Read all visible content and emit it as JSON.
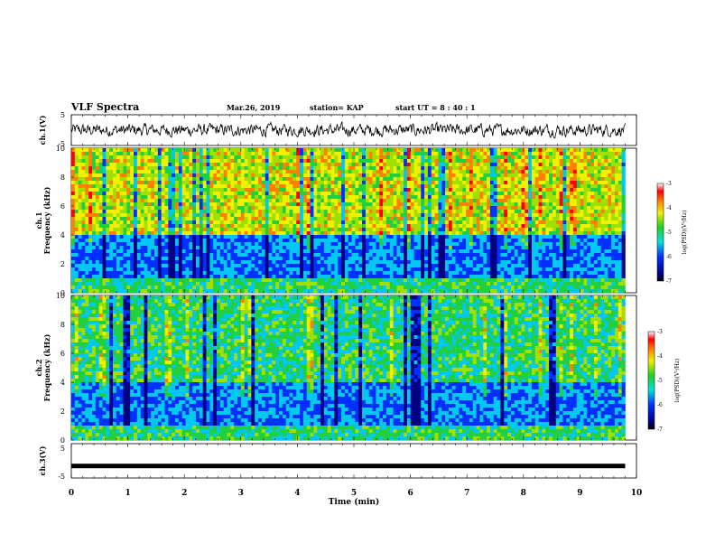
{
  "header": {
    "title": "VLF Spectra",
    "date": "Mar.26, 2019",
    "station": "station= KAP",
    "start_ut": "start  UT =   8 : 40 : 1"
  },
  "chart_data": [
    {
      "id": "ch1-waveform",
      "type": "line",
      "ylabel": "ch.1(V)",
      "ylim": [
        -5,
        5
      ],
      "yticks": [
        "5",
        "-5"
      ],
      "xlim": [
        0,
        10
      ],
      "series": [
        {
          "description_values_approx": [
            -0.3,
            1.5,
            -2.0,
            0.8,
            1.2,
            -1.5,
            0.4,
            -0.8,
            1.6,
            -2.2,
            0.6,
            1.8,
            -1.0,
            0.3,
            -1.9,
            1.1,
            0.9,
            -0.6,
            2.0,
            -1.4
          ]
        }
      ]
    },
    {
      "id": "ch1-spectrogram",
      "type": "heatmap",
      "ylabel_line1": "ch.1",
      "ylabel_line2": "Frequency (kHz)",
      "ylim": [
        0,
        10
      ],
      "yticks": [
        "0",
        "2",
        "4",
        "6",
        "8",
        "10"
      ],
      "xlim": [
        0,
        9.8
      ],
      "colorbar": {
        "label": "log(PSD)(V²/Hz)",
        "range": [
          -7,
          -3
        ],
        "ticks": [
          "-3",
          "-4",
          "-5",
          "-6",
          "-7"
        ]
      }
    },
    {
      "id": "ch2-spectrogram",
      "type": "heatmap",
      "ylabel_line1": "ch.2",
      "ylabel_line2": "Frequency (kHz)",
      "ylim": [
        0,
        10
      ],
      "yticks": [
        "0",
        "2",
        "4",
        "6",
        "8",
        "10"
      ],
      "xlim": [
        0,
        9.8
      ],
      "colorbar": {
        "label": "log(PSD)(V²/Hz)",
        "range": [
          -7,
          -3
        ],
        "ticks": [
          "-3",
          "-4",
          "-5",
          "-6",
          "-7"
        ]
      }
    },
    {
      "id": "ch3-waveform",
      "type": "line",
      "ylabel": "ch.3(V)",
      "ylim": [
        -5,
        5
      ],
      "yticks": [
        "5",
        "-5"
      ],
      "xlim": [
        0,
        9.8
      ],
      "series": [
        {
          "description_values_approx": [
            -1.5,
            -1.5
          ]
        }
      ]
    }
  ],
  "xaxis": {
    "label": "Time (min)",
    "ticks": [
      "0",
      "1",
      "2",
      "3",
      "4",
      "5",
      "6",
      "7",
      "8",
      "9",
      "10"
    ],
    "range": [
      0,
      10
    ]
  }
}
